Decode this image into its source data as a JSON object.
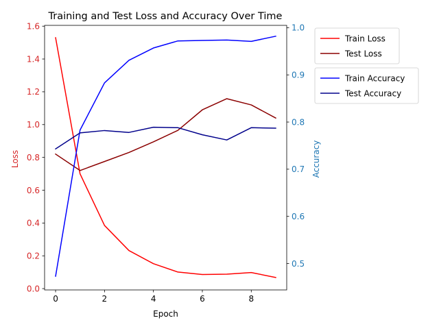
{
  "chart_data": {
    "type": "line",
    "title": "Training and Test Loss and Accuracy Over Time",
    "xlabel": "Epoch",
    "ylabel_left": "Loss",
    "ylabel_right": "Accuracy",
    "x": [
      0,
      1,
      2,
      3,
      4,
      5,
      6,
      7,
      8,
      9
    ],
    "xlim": [
      -0.45,
      9.45
    ],
    "xticks": [
      0,
      2,
      4,
      6,
      8
    ],
    "ylim_left": [
      -0.008,
      1.605
    ],
    "yticks_left": [
      0.0,
      0.2,
      0.4,
      0.6,
      0.8,
      1.0,
      1.2,
      1.4,
      1.6
    ],
    "ylim_right": [
      0.444,
      1.005
    ],
    "yticks_right": [
      0.5,
      0.6,
      0.7,
      0.8,
      0.9,
      1.0
    ],
    "left_axis_color": "#d62728",
    "right_axis_color": "#1f77b4",
    "grid": false,
    "legend_left": {
      "placement": "top-right-outside",
      "entries": [
        {
          "name": "Train Loss",
          "color": "#ff0000"
        },
        {
          "name": "Test Loss",
          "color": "#8b0000"
        }
      ]
    },
    "legend_right": {
      "placement": "right-outside",
      "entries": [
        {
          "name": "Train Accuracy",
          "color": "#0000ff"
        },
        {
          "name": "Test Accuracy",
          "color": "#00008b"
        }
      ]
    },
    "series_left": [
      {
        "name": "Train Loss",
        "color": "#ff0000",
        "values": [
          1.53,
          0.7,
          0.385,
          0.232,
          0.152,
          0.101,
          0.086,
          0.088,
          0.098,
          0.068
        ]
      },
      {
        "name": "Test Loss",
        "color": "#8b0000",
        "values": [
          0.82,
          0.72,
          0.775,
          0.83,
          0.895,
          0.965,
          1.09,
          1.158,
          1.12,
          1.04
        ]
      }
    ],
    "series_right": [
      {
        "name": "Train Accuracy",
        "color": "#0000ff",
        "values": [
          0.473,
          0.783,
          0.883,
          0.931,
          0.957,
          0.972,
          0.973,
          0.974,
          0.971,
          0.982
        ]
      },
      {
        "name": "Test Accuracy",
        "color": "#00008b",
        "values": [
          0.743,
          0.777,
          0.782,
          0.778,
          0.789,
          0.788,
          0.773,
          0.762,
          0.788,
          0.787
        ]
      }
    ]
  }
}
